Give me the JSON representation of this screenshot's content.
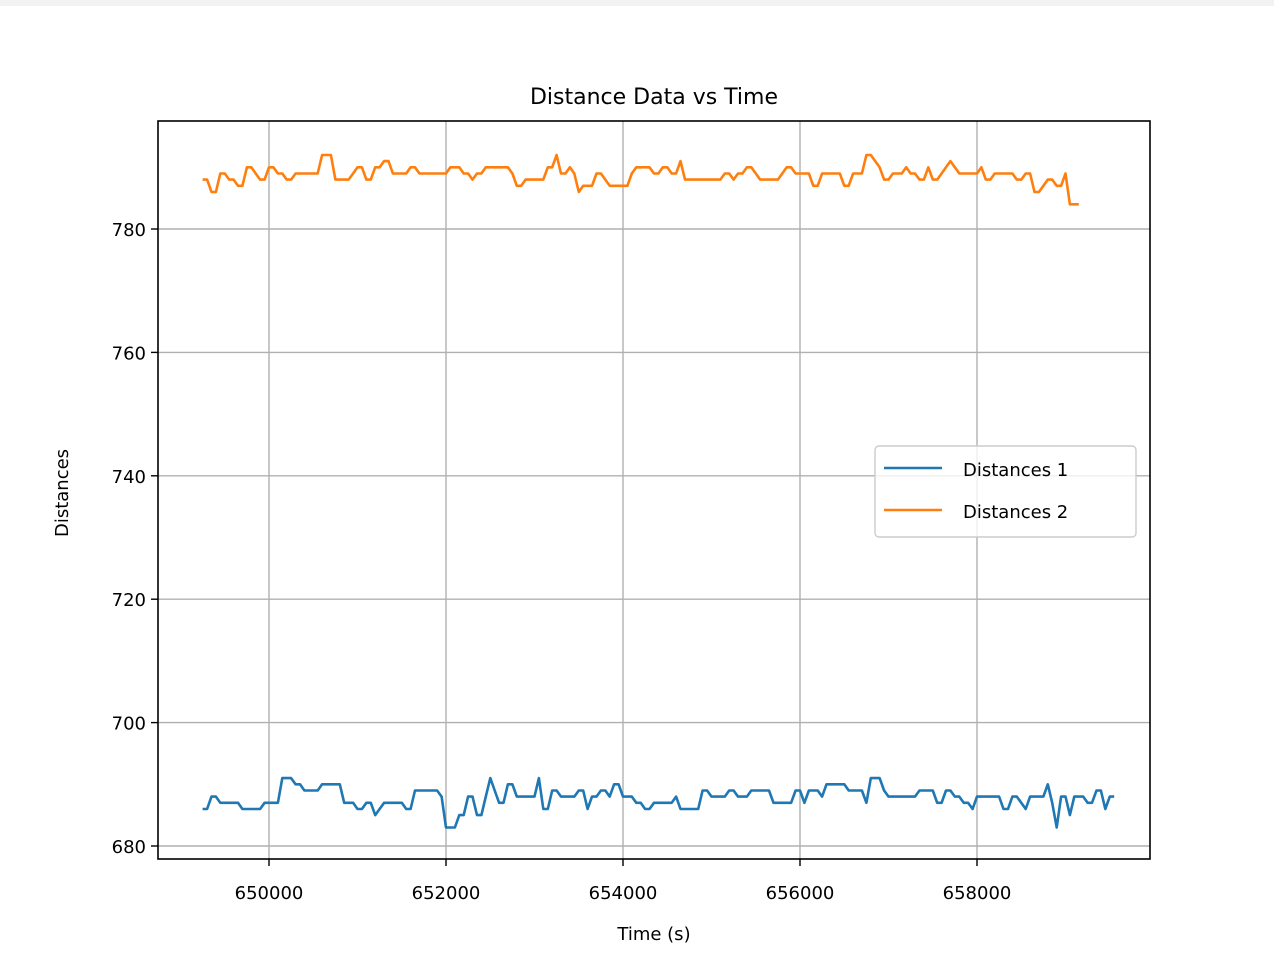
{
  "chart_data": {
    "type": "line",
    "title": "Distance Data vs Time",
    "xlabel": "Time (s)",
    "ylabel": "Distances",
    "xlim": [
      648800,
      660000
    ],
    "ylim": [
      677.5,
      797.5
    ],
    "xticks": [
      650000,
      652000,
      654000,
      656000,
      658000
    ],
    "xtick_labels": [
      "650000",
      "652000",
      "654000",
      "656000",
      "658000"
    ],
    "yticks": [
      680,
      700,
      720,
      740,
      760,
      780
    ],
    "ytick_labels": [
      "680",
      "700",
      "720",
      "740",
      "760",
      "780"
    ],
    "grid": true,
    "legend_position": "center right",
    "x_start": 649250,
    "x_step": 50,
    "series": [
      {
        "name": "Distances 1",
        "color": "#1f77b4",
        "values": [
          686,
          686,
          688,
          688,
          687,
          687,
          687,
          687,
          687,
          686,
          686,
          686,
          686,
          686,
          687,
          687,
          687,
          687,
          691,
          691,
          691,
          690,
          690,
          689,
          689,
          689,
          689,
          690,
          690,
          690,
          690,
          690,
          687,
          687,
          687,
          686,
          686,
          687,
          687,
          685,
          686,
          687,
          687,
          687,
          687,
          687,
          686,
          686,
          689,
          689,
          689,
          689,
          689,
          689,
          688,
          683,
          683,
          683,
          685,
          685,
          688,
          688,
          685,
          685,
          688,
          691,
          689,
          687,
          687,
          690,
          690,
          688,
          688,
          688,
          688,
          688,
          691,
          686,
          686,
          689,
          689,
          688,
          688,
          688,
          688,
          689,
          689,
          686,
          688,
          688,
          689,
          689,
          688,
          690,
          690,
          688,
          688,
          688,
          687,
          687,
          686,
          686,
          687,
          687,
          687,
          687,
          687,
          688,
          686,
          686,
          686,
          686,
          686,
          689,
          689,
          688,
          688,
          688,
          688,
          689,
          689,
          688,
          688,
          688,
          689,
          689,
          689,
          689,
          689,
          687,
          687,
          687,
          687,
          687,
          689,
          689,
          687,
          689,
          689,
          689,
          688,
          690,
          690,
          690,
          690,
          690,
          689,
          689,
          689,
          689,
          687,
          691,
          691,
          691,
          689,
          688,
          688,
          688,
          688,
          688,
          688,
          688,
          689,
          689,
          689,
          689,
          687,
          687,
          689,
          689,
          688,
          688,
          687,
          687,
          686,
          688,
          688,
          688,
          688,
          688,
          688,
          686,
          686,
          688,
          688,
          687,
          686,
          688,
          688,
          688,
          688,
          690,
          687,
          683,
          688,
          688,
          685,
          688,
          688,
          688,
          687,
          687,
          689,
          689,
          686,
          688,
          688
        ]
      },
      {
        "name": "Distances 2",
        "color": "#ff7f0e",
        "values": [
          788,
          788,
          786,
          786,
          789,
          789,
          788,
          788,
          787,
          787,
          790,
          790,
          789,
          788,
          788,
          790,
          790,
          789,
          789,
          788,
          788,
          789,
          789,
          789,
          789,
          789,
          789,
          792,
          792,
          792,
          788,
          788,
          788,
          788,
          789,
          790,
          790,
          788,
          788,
          790,
          790,
          791,
          791,
          789,
          789,
          789,
          789,
          790,
          790,
          789,
          789,
          789,
          789,
          789,
          789,
          789,
          790,
          790,
          790,
          789,
          789,
          788,
          789,
          789,
          790,
          790,
          790,
          790,
          790,
          790,
          789,
          787,
          787,
          788,
          788,
          788,
          788,
          788,
          790,
          790,
          792,
          789,
          789,
          790,
          789,
          786,
          787,
          787,
          787,
          789,
          789,
          788,
          787,
          787,
          787,
          787,
          787,
          789,
          790,
          790,
          790,
          790,
          789,
          789,
          790,
          790,
          789,
          789,
          791,
          788,
          788,
          788,
          788,
          788,
          788,
          788,
          788,
          788,
          789,
          789,
          788,
          789,
          789,
          790,
          790,
          789,
          788,
          788,
          788,
          788,
          788,
          789,
          790,
          790,
          789,
          789,
          789,
          789,
          787,
          787,
          789,
          789,
          789,
          789,
          789,
          787,
          787,
          789,
          789,
          789,
          792,
          792,
          791,
          790,
          788,
          788,
          789,
          789,
          789,
          790,
          789,
          789,
          788,
          788,
          790,
          788,
          788,
          789,
          790,
          791,
          790,
          789,
          789,
          789,
          789,
          789,
          790,
          788,
          788,
          789,
          789,
          789,
          789,
          789,
          788,
          788,
          789,
          789,
          786,
          786,
          787,
          788,
          788,
          787,
          787,
          789,
          784,
          784,
          784
        ]
      }
    ]
  }
}
